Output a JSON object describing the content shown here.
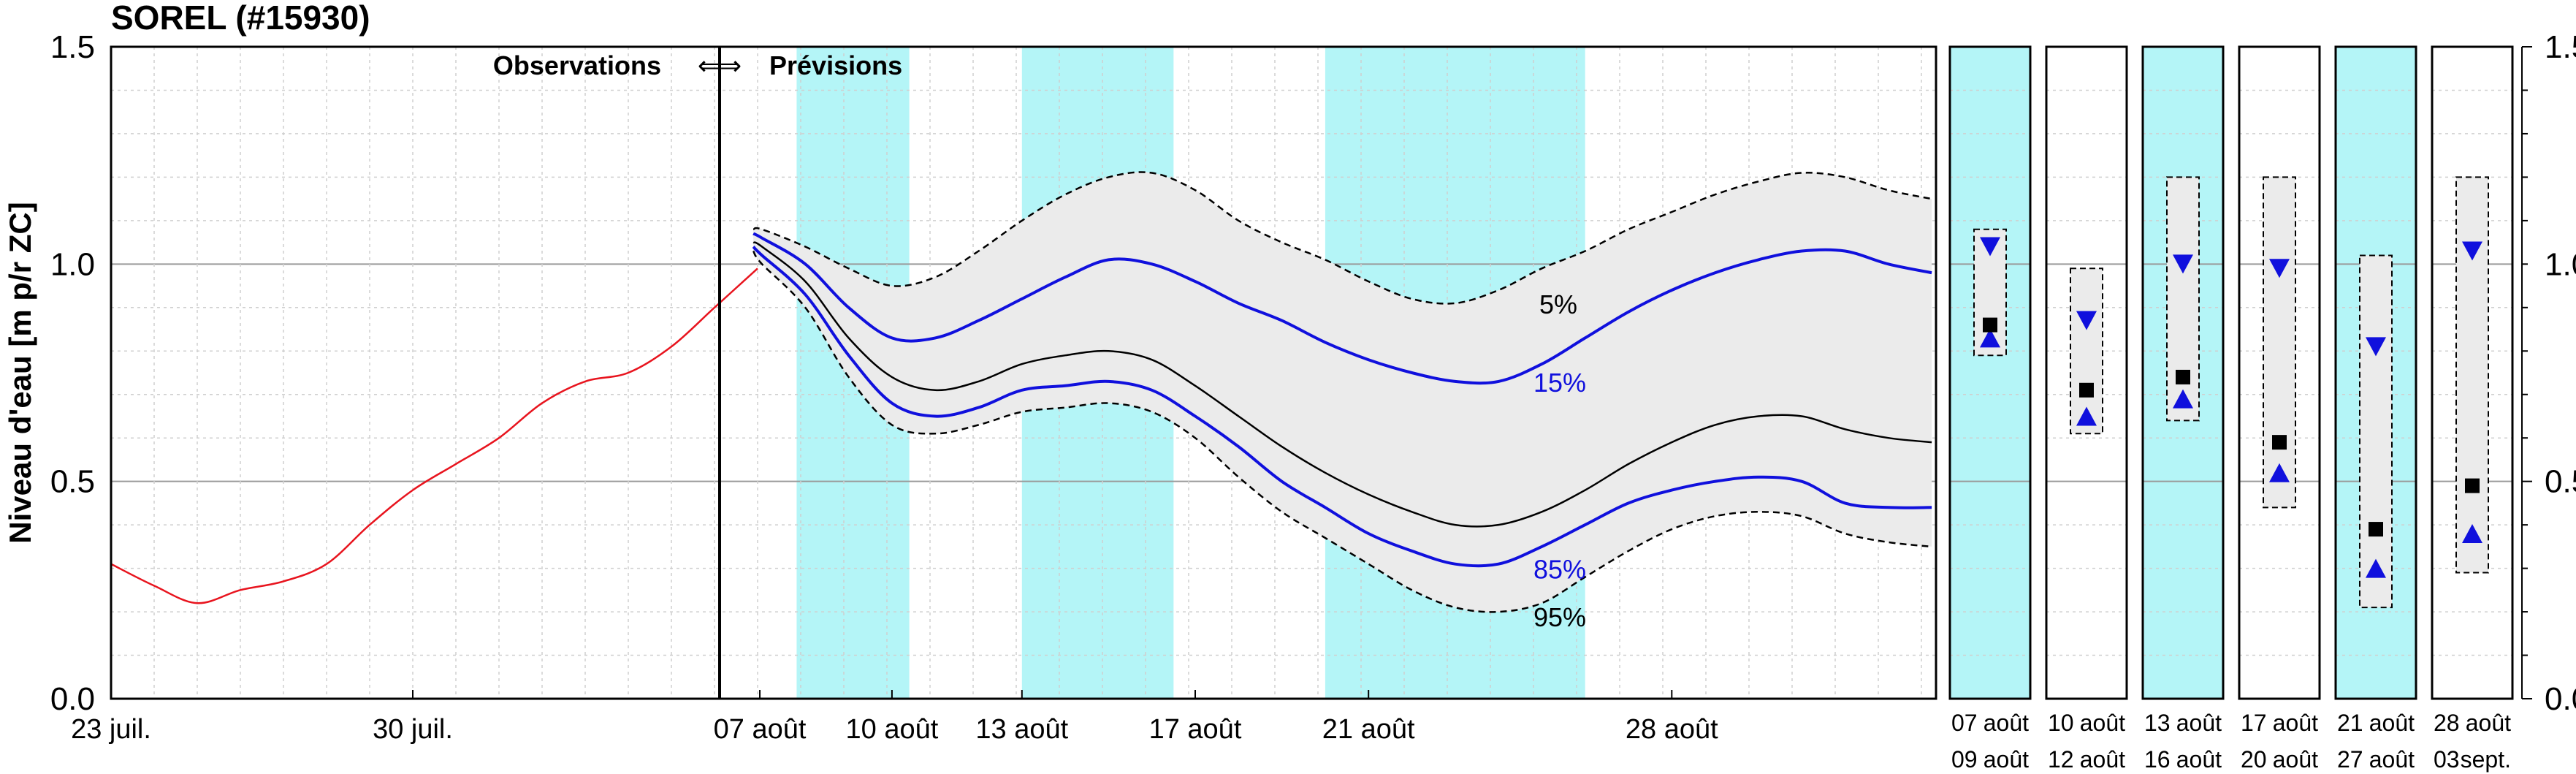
{
  "title": "SOREL (#15930)",
  "y_axis_label": "Niveau d'eau [m p/r ZC]",
  "section_labels": {
    "observations": "Observations",
    "arrow": "⇐⇒",
    "forecasts": "Prévisions"
  },
  "colors": {
    "observed_line": "#e8141e",
    "percentile_blue": "#1010dd",
    "median_line": "#000000",
    "band_fill": "#ebebeb",
    "week_shade": "#b4f5f7",
    "grid": "#cfcfcf"
  },
  "chart_data": {
    "type": "line",
    "ylim": [
      0.0,
      1.5
    ],
    "y_ticks": [
      "0.0",
      "0.5",
      "1.0",
      "1.5"
    ],
    "x_tick_labels_obs": [
      "23 juil.",
      "30 juil."
    ],
    "x_tick_labels_fcst": [
      "07 août",
      "10 août",
      "13 août",
      "17 août",
      "21 août",
      "28 août"
    ],
    "observed": {
      "name": "observations",
      "x_days_from_jul23": [
        0,
        1,
        2,
        3,
        4,
        5,
        6,
        7,
        8,
        9,
        10,
        11,
        12,
        13,
        14,
        15
      ],
      "values": [
        0.31,
        0.26,
        0.22,
        0.25,
        0.27,
        0.31,
        0.4,
        0.48,
        0.54,
        0.6,
        0.68,
        0.73,
        0.75,
        0.81,
        0.9,
        0.99
      ]
    },
    "forecast_x_days_from_aug7": [
      -0.2,
      0,
      1,
      2,
      3,
      4,
      5,
      6,
      7,
      8,
      9,
      10,
      11,
      12,
      13,
      14,
      15,
      16,
      17,
      18,
      19,
      20,
      21,
      22,
      23,
      24,
      25,
      26,
      27
    ],
    "series": [
      {
        "name": "5%",
        "values": [
          1.08,
          1.08,
          1.04,
          0.99,
          0.95,
          0.97,
          1.03,
          1.1,
          1.16,
          1.2,
          1.21,
          1.17,
          1.1,
          1.05,
          1.01,
          0.96,
          0.92,
          0.91,
          0.94,
          0.99,
          1.03,
          1.08,
          1.12,
          1.16,
          1.19,
          1.21,
          1.2,
          1.17,
          1.15
        ]
      },
      {
        "name": "15%",
        "values": [
          1.07,
          1.06,
          1.0,
          0.9,
          0.83,
          0.83,
          0.87,
          0.92,
          0.97,
          1.01,
          1.0,
          0.96,
          0.91,
          0.87,
          0.82,
          0.78,
          0.75,
          0.73,
          0.73,
          0.77,
          0.83,
          0.89,
          0.94,
          0.98,
          1.01,
          1.03,
          1.03,
          1.0,
          0.98
        ]
      },
      {
        "name": "median",
        "values": [
          1.05,
          1.04,
          0.96,
          0.83,
          0.74,
          0.71,
          0.73,
          0.77,
          0.79,
          0.8,
          0.78,
          0.72,
          0.65,
          0.58,
          0.52,
          0.47,
          0.43,
          0.4,
          0.4,
          0.43,
          0.48,
          0.54,
          0.59,
          0.63,
          0.65,
          0.65,
          0.62,
          0.6,
          0.59
        ]
      },
      {
        "name": "85%",
        "values": [
          1.04,
          1.02,
          0.93,
          0.79,
          0.68,
          0.65,
          0.67,
          0.71,
          0.72,
          0.73,
          0.71,
          0.65,
          0.58,
          0.5,
          0.44,
          0.38,
          0.34,
          0.31,
          0.31,
          0.35,
          0.4,
          0.45,
          0.48,
          0.5,
          0.51,
          0.5,
          0.45,
          0.44,
          0.44
        ]
      },
      {
        "name": "95%",
        "values": [
          1.03,
          1.0,
          0.9,
          0.74,
          0.63,
          0.61,
          0.63,
          0.66,
          0.67,
          0.68,
          0.66,
          0.6,
          0.51,
          0.43,
          0.37,
          0.31,
          0.25,
          0.21,
          0.2,
          0.22,
          0.28,
          0.34,
          0.39,
          0.42,
          0.43,
          0.42,
          0.38,
          0.36,
          0.35
        ]
      }
    ],
    "shaded_periods_days_from_aug7": [
      [
        0.8,
        3.4
      ],
      [
        6,
        9.5
      ],
      [
        13,
        19
      ]
    ],
    "weekly_boxes": [
      {
        "label_top": [
          "07",
          "août"
        ],
        "label_bottom": [
          "09",
          "août"
        ],
        "shaded": true,
        "q05": 1.08,
        "q15": 1.04,
        "median": 0.86,
        "q85": 0.83,
        "q95": 0.79
      },
      {
        "label_top": [
          "10",
          "août"
        ],
        "label_bottom": [
          "12",
          "août"
        ],
        "shaded": false,
        "q05": 0.99,
        "q15": 0.87,
        "median": 0.71,
        "q85": 0.65,
        "q95": 0.61
      },
      {
        "label_top": [
          "13",
          "août"
        ],
        "label_bottom": [
          "16",
          "août"
        ],
        "shaded": true,
        "q05": 1.2,
        "q15": 1.0,
        "median": 0.74,
        "q85": 0.69,
        "q95": 0.64
      },
      {
        "label_top": [
          "17",
          "août"
        ],
        "label_bottom": [
          "20",
          "août"
        ],
        "shaded": false,
        "q05": 1.2,
        "q15": 0.99,
        "median": 0.59,
        "q85": 0.52,
        "q95": 0.44
      },
      {
        "label_top": [
          "21",
          "août"
        ],
        "label_bottom": [
          "27",
          "août"
        ],
        "shaded": true,
        "q05": 1.02,
        "q15": 0.81,
        "median": 0.39,
        "q85": 0.3,
        "q95": 0.21
      },
      {
        "label_top": [
          "28",
          "août"
        ],
        "label_bottom": [
          "03",
          "sept."
        ],
        "shaded": false,
        "q05": 1.2,
        "q15": 1.03,
        "median": 0.49,
        "q85": 0.38,
        "q95": 0.29
      }
    ]
  }
}
